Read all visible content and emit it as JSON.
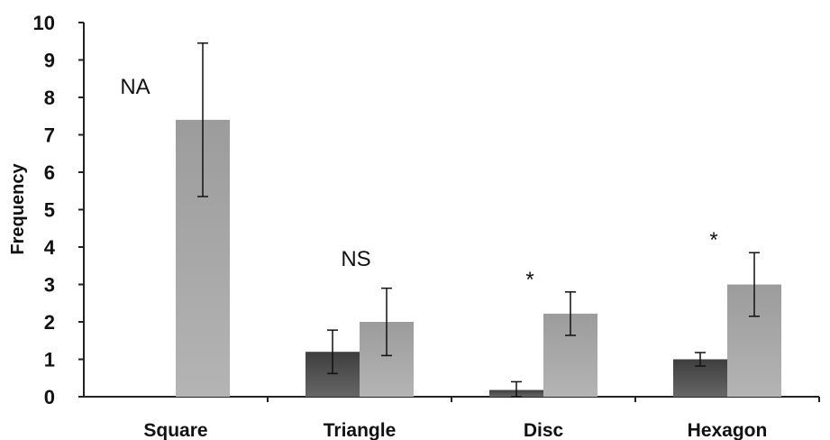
{
  "chart_data": {
    "type": "bar",
    "ylabel": "Frequency",
    "xlabel": "",
    "ylim": [
      0,
      10
    ],
    "yticks": [
      "0",
      "1",
      "2",
      "3",
      "4",
      "5",
      "6",
      "7",
      "8",
      "9",
      "10"
    ],
    "categories": [
      "Square",
      "Triangle",
      "Disc",
      "Hexagon"
    ],
    "series": [
      {
        "color": "#555555",
        "values": [
          0,
          1.2,
          0.18,
          1.0
        ],
        "error": [
          0,
          0.58,
          0.22,
          0.18
        ]
      },
      {
        "color": "#a6a6a6",
        "values": [
          7.4,
          2.0,
          2.22,
          3.0
        ],
        "error": [
          2.05,
          0.9,
          0.58,
          0.85
        ]
      }
    ],
    "annotations": [
      "NA",
      "NS",
      "*",
      "*"
    ],
    "grid": false,
    "legend": "none"
  }
}
